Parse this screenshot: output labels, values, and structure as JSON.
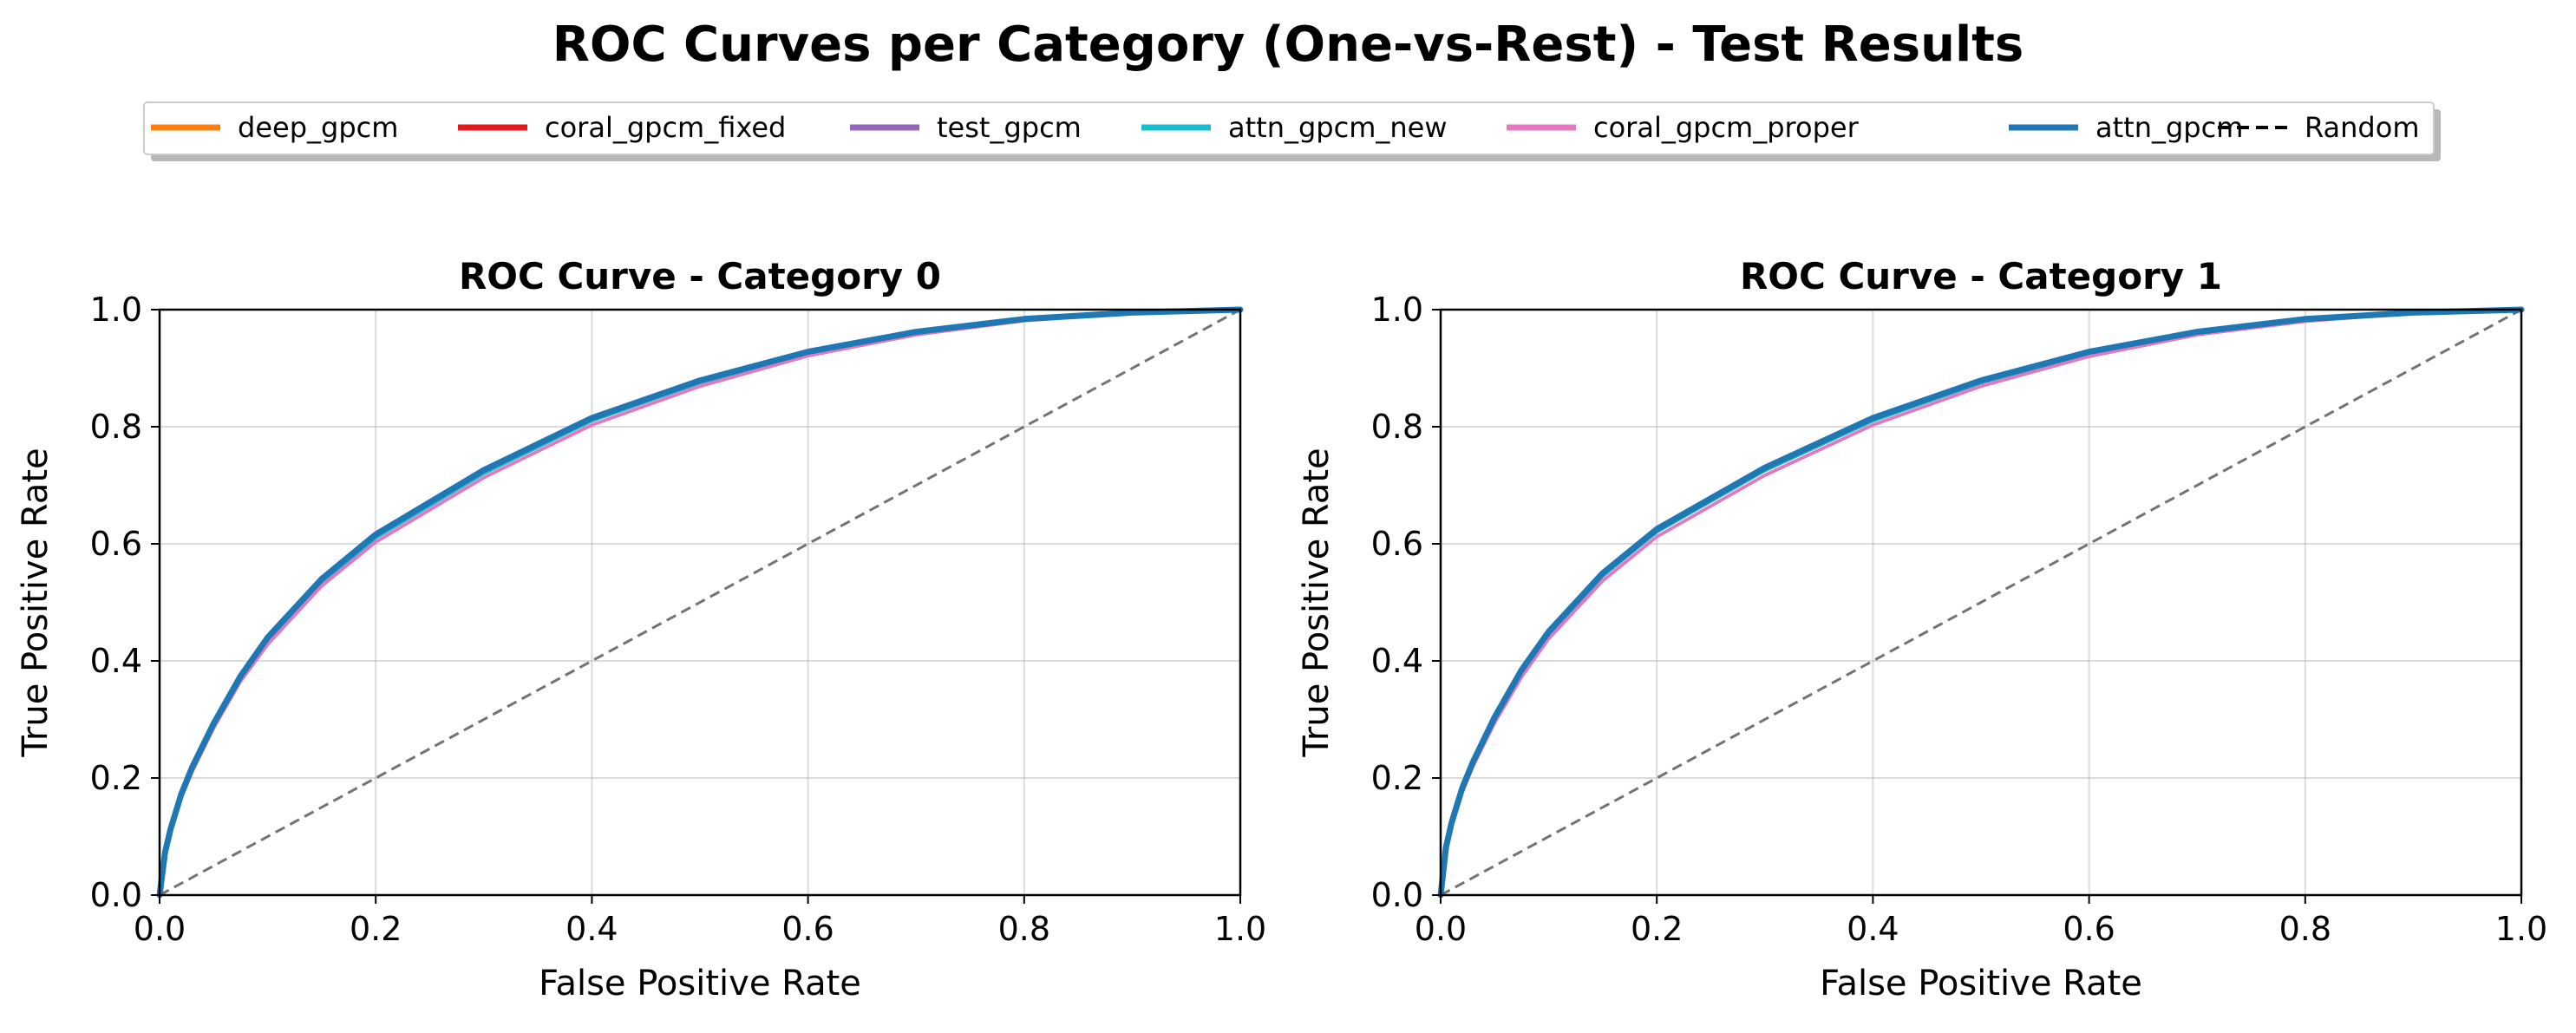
{
  "figure": {
    "title": "ROC Curves per Category (One-vs-Rest) - Test Results"
  },
  "legend": {
    "placement": "top-center",
    "entries": [
      {
        "label": "deep_gpcm",
        "color": "#ff7f0e",
        "style": "solid"
      },
      {
        "label": "coral_gpcm_fixed",
        "color": "#e31a1c",
        "style": "solid"
      },
      {
        "label": "test_gpcm",
        "color": "#9467bd",
        "style": "solid"
      },
      {
        "label": "attn_gpcm_new",
        "color": "#17becf",
        "style": "solid"
      },
      {
        "label": "coral_gpcm_proper",
        "color": "#e377c2",
        "style": "solid"
      },
      {
        "label": "attn_gpcm",
        "color": "#1f77b4",
        "style": "solid"
      },
      {
        "label": "Random",
        "color": "#000000",
        "style": "dashed"
      }
    ]
  },
  "chart_data": [
    {
      "type": "line",
      "title": "ROC Curve - Category 0",
      "xlabel": "False Positive Rate",
      "ylabel": "True Positive Rate",
      "xlim": [
        0,
        1
      ],
      "ylim": [
        0,
        1
      ],
      "grid": true,
      "xticks": [
        "0.0",
        "0.2",
        "0.4",
        "0.6",
        "0.8",
        "1.0"
      ],
      "yticks": [
        "0.0",
        "0.2",
        "0.4",
        "0.6",
        "0.8",
        "1.0"
      ],
      "x": [
        0,
        0.005,
        0.01,
        0.02,
        0.03,
        0.05,
        0.075,
        0.1,
        0.15,
        0.2,
        0.3,
        0.4,
        0.5,
        0.6,
        0.7,
        0.8,
        0.9,
        1.0
      ],
      "series": [
        {
          "name": "deep_gpcm",
          "color": "#ff7f0e",
          "values": [
            0,
            0.07,
            0.11,
            0.17,
            0.215,
            0.29,
            0.37,
            0.435,
            0.535,
            0.61,
            0.72,
            0.81,
            0.875,
            0.925,
            0.96,
            0.983,
            0.995,
            1.0
          ]
        },
        {
          "name": "coral_gpcm_fixed",
          "color": "#e31a1c",
          "values": [
            0,
            0.068,
            0.107,
            0.166,
            0.21,
            0.285,
            0.365,
            0.428,
            0.528,
            0.603,
            0.713,
            0.803,
            0.869,
            0.921,
            0.957,
            0.981,
            0.994,
            1.0
          ]
        },
        {
          "name": "test_gpcm",
          "color": "#9467bd",
          "values": [
            0,
            0.07,
            0.11,
            0.17,
            0.215,
            0.29,
            0.37,
            0.435,
            0.535,
            0.61,
            0.72,
            0.81,
            0.875,
            0.925,
            0.96,
            0.983,
            0.995,
            1.0
          ]
        },
        {
          "name": "attn_gpcm_new",
          "color": "#17becf",
          "values": [
            0,
            0.07,
            0.11,
            0.17,
            0.215,
            0.29,
            0.37,
            0.435,
            0.535,
            0.61,
            0.72,
            0.81,
            0.875,
            0.925,
            0.96,
            0.983,
            0.995,
            1.0
          ]
        },
        {
          "name": "coral_gpcm_proper",
          "color": "#e377c2",
          "values": [
            0,
            0.068,
            0.107,
            0.166,
            0.21,
            0.285,
            0.365,
            0.428,
            0.528,
            0.603,
            0.713,
            0.803,
            0.869,
            0.921,
            0.957,
            0.981,
            0.994,
            1.0
          ]
        },
        {
          "name": "attn_gpcm",
          "color": "#1f77b4",
          "values": [
            0,
            0.072,
            0.112,
            0.172,
            0.218,
            0.293,
            0.374,
            0.44,
            0.54,
            0.616,
            0.726,
            0.815,
            0.879,
            0.928,
            0.962,
            0.984,
            0.995,
            1.0
          ]
        }
      ],
      "baseline": {
        "name": "Random",
        "x": [
          0,
          1
        ],
        "values": [
          0,
          1
        ]
      }
    },
    {
      "type": "line",
      "title": "ROC Curve - Category 1",
      "xlabel": "False Positive Rate",
      "ylabel": "True Positive Rate",
      "xlim": [
        0,
        1
      ],
      "ylim": [
        0,
        1
      ],
      "grid": true,
      "xticks": [
        "0.0",
        "0.2",
        "0.4",
        "0.6",
        "0.8",
        "1.0"
      ],
      "yticks": [
        "0.0",
        "0.2",
        "0.4",
        "0.6",
        "0.8",
        "1.0"
      ],
      "x": [
        0,
        0.005,
        0.01,
        0.02,
        0.03,
        0.05,
        0.075,
        0.1,
        0.15,
        0.2,
        0.3,
        0.4,
        0.5,
        0.6,
        0.7,
        0.8,
        0.9,
        1.0
      ],
      "series": [
        {
          "name": "deep_gpcm",
          "color": "#ff7f0e",
          "values": [
            0,
            0.08,
            0.12,
            0.18,
            0.225,
            0.3,
            0.38,
            0.445,
            0.545,
            0.62,
            0.725,
            0.81,
            0.875,
            0.925,
            0.96,
            0.982,
            0.995,
            1.0
          ]
        },
        {
          "name": "coral_gpcm_fixed",
          "color": "#e31a1c",
          "values": [
            0,
            0.077,
            0.116,
            0.175,
            0.22,
            0.294,
            0.373,
            0.438,
            0.537,
            0.612,
            0.717,
            0.803,
            0.869,
            0.92,
            0.957,
            0.98,
            0.994,
            1.0
          ]
        },
        {
          "name": "test_gpcm",
          "color": "#9467bd",
          "values": [
            0,
            0.08,
            0.12,
            0.18,
            0.225,
            0.3,
            0.38,
            0.445,
            0.545,
            0.62,
            0.725,
            0.81,
            0.875,
            0.925,
            0.96,
            0.982,
            0.995,
            1.0
          ]
        },
        {
          "name": "attn_gpcm_new",
          "color": "#17becf",
          "values": [
            0,
            0.08,
            0.12,
            0.18,
            0.225,
            0.3,
            0.38,
            0.445,
            0.545,
            0.62,
            0.725,
            0.81,
            0.875,
            0.925,
            0.96,
            0.982,
            0.995,
            1.0
          ]
        },
        {
          "name": "coral_gpcm_proper",
          "color": "#e377c2",
          "values": [
            0,
            0.077,
            0.116,
            0.175,
            0.22,
            0.294,
            0.373,
            0.438,
            0.537,
            0.612,
            0.717,
            0.803,
            0.869,
            0.92,
            0.957,
            0.98,
            0.994,
            1.0
          ]
        },
        {
          "name": "attn_gpcm",
          "color": "#1f77b4",
          "values": [
            0,
            0.082,
            0.123,
            0.183,
            0.228,
            0.304,
            0.385,
            0.45,
            0.55,
            0.625,
            0.73,
            0.815,
            0.879,
            0.928,
            0.962,
            0.984,
            0.995,
            1.0
          ]
        }
      ],
      "baseline": {
        "name": "Random",
        "x": [
          0,
          1
        ],
        "values": [
          0,
          1
        ]
      }
    }
  ]
}
